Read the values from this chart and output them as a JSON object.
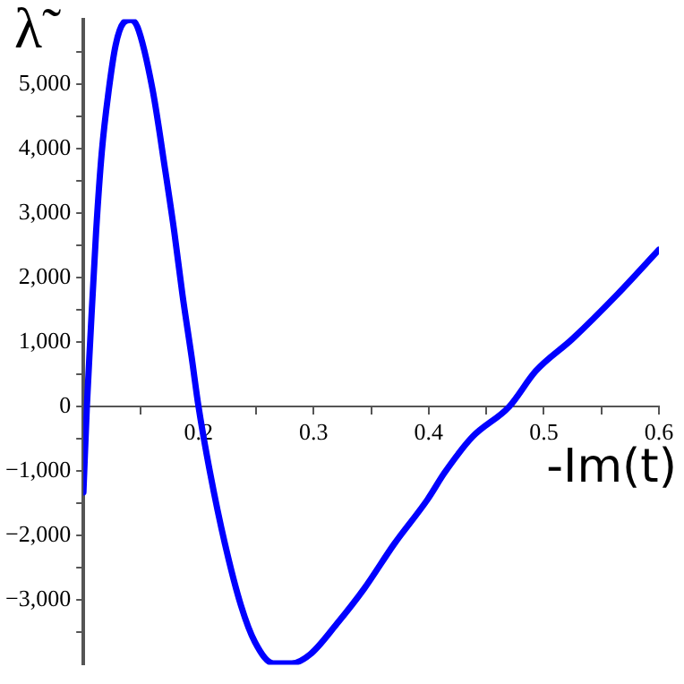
{
  "chart_data": {
    "type": "line",
    "xlabel": "-Im(t)",
    "ylabel": "λ̃",
    "grid": false,
    "legend": false,
    "marker": "none",
    "line_style": "solid",
    "xlim": [
      0.1,
      0.6
    ],
    "ylim": [
      -4000,
      6000
    ],
    "xticks": [
      {
        "value": 0.15,
        "label": null
      },
      {
        "value": 0.2,
        "label": "0.2"
      },
      {
        "value": 0.25,
        "label": null
      },
      {
        "value": 0.3,
        "label": "0.3"
      },
      {
        "value": 0.35,
        "label": null
      },
      {
        "value": 0.4,
        "label": "0.4"
      },
      {
        "value": 0.45,
        "label": null
      },
      {
        "value": 0.5,
        "label": "0.5"
      },
      {
        "value": 0.55,
        "label": null
      },
      {
        "value": 0.6,
        "label": "0.6"
      }
    ],
    "yticks": [
      {
        "value": -3500,
        "label": null
      },
      {
        "value": -3000,
        "label": "−3,000"
      },
      {
        "value": -2500,
        "label": null
      },
      {
        "value": -2000,
        "label": "−2,000"
      },
      {
        "value": -1500,
        "label": null
      },
      {
        "value": -1000,
        "label": "−1,000"
      },
      {
        "value": -500,
        "label": null
      },
      {
        "value": 0,
        "label": "0"
      },
      {
        "value": 500,
        "label": null
      },
      {
        "value": 1000,
        "label": "1,000"
      },
      {
        "value": 1500,
        "label": null
      },
      {
        "value": 2000,
        "label": "2,000"
      },
      {
        "value": 2500,
        "label": null
      },
      {
        "value": 3000,
        "label": "3,000"
      },
      {
        "value": 3500,
        "label": null
      },
      {
        "value": 4000,
        "label": "4,000"
      },
      {
        "value": 4500,
        "label": null
      },
      {
        "value": 5000,
        "label": "5,000"
      },
      {
        "value": 5500,
        "label": null
      }
    ],
    "x": [
      0.1,
      0.103,
      0.106,
      0.111,
      0.116,
      0.122,
      0.128,
      0.135,
      0.141,
      0.147,
      0.16,
      0.171,
      0.179,
      0.186,
      0.194,
      0.2,
      0.21,
      0.223,
      0.237,
      0.249,
      0.265,
      0.281,
      0.297,
      0.32,
      0.344,
      0.37,
      0.399,
      0.414,
      0.438,
      0.47,
      0.493,
      0.525,
      0.564,
      0.6
    ],
    "series": [
      {
        "color": "#0000ff",
        "values": [
          -1330,
          0,
          1050,
          2700,
          3950,
          4900,
          5600,
          5950,
          5990,
          5880,
          4920,
          3670,
          2700,
          1740,
          770,
          0,
          -1020,
          -2130,
          -3090,
          -3650,
          -3980,
          -3980,
          -3840,
          -3370,
          -2820,
          -2130,
          -1440,
          -1020,
          -470,
          0,
          550,
          1050,
          1740,
          2430
        ]
      }
    ]
  }
}
